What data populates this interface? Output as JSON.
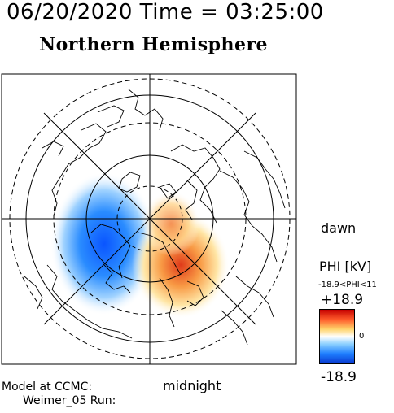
{
  "header": {
    "timestamp": "06/20/2020 Time = 03:25:00",
    "title": "Northern Hemisphere"
  },
  "map": {
    "dawn_label": "dawn",
    "midnight_label": "midnight"
  },
  "footer": {
    "model_line1": "Model at CCMC:",
    "model_line2": "Weimer_05 Run:"
  },
  "colorbar": {
    "title": "PHI [kV]",
    "range_text": "-18.9<PHI<11",
    "max_label": "+18.9",
    "zero_label": "0",
    "min_label": "-18.9"
  },
  "colors": {
    "positive": "#e03020",
    "negative": "#1e7fff",
    "neutral": "#ffffff"
  }
}
